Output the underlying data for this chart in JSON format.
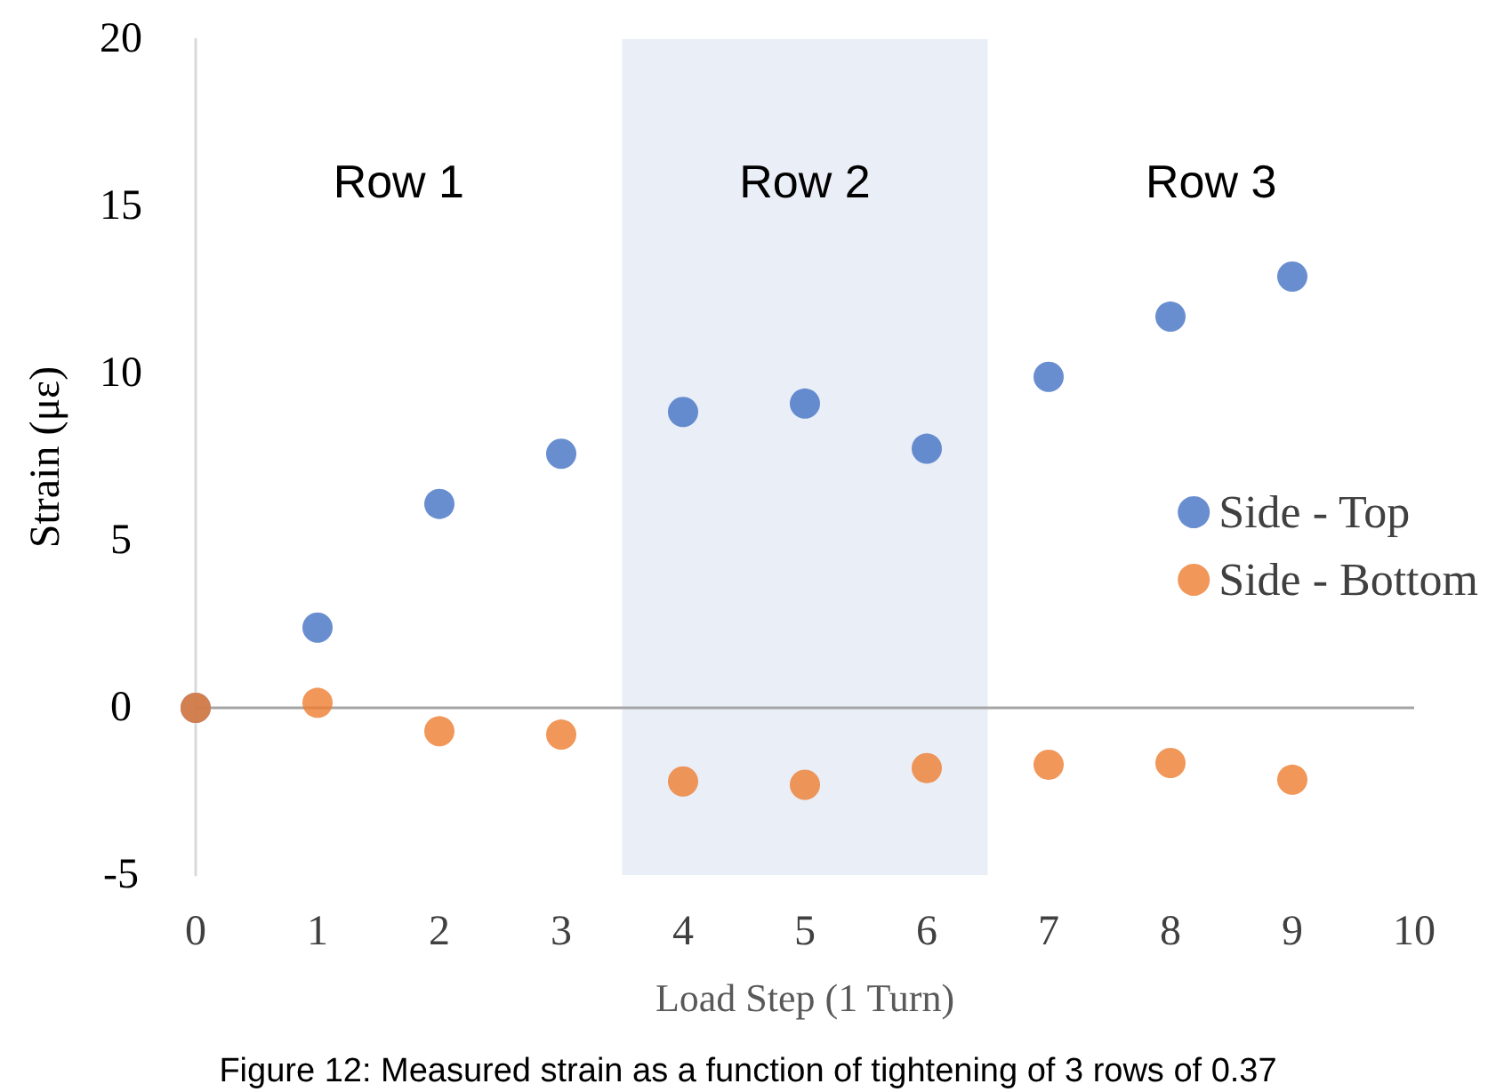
{
  "chart_data": {
    "type": "scatter",
    "xlabel": "Load Step (1 Turn)",
    "ylabel": "Strain (με)",
    "x": [
      0,
      1,
      2,
      3,
      4,
      5,
      6,
      7,
      8,
      9
    ],
    "series": [
      {
        "name": "Side - Top",
        "color": "#4472c4",
        "values": [
          0,
          2.4,
          6.1,
          7.6,
          8.85,
          9.1,
          7.75,
          9.9,
          11.7,
          12.9
        ]
      },
      {
        "name": "Side - Bottom",
        "color": "#ed7d31",
        "values": [
          0,
          0.15,
          -0.7,
          -0.8,
          -2.2,
          -2.3,
          -1.8,
          -1.7,
          -1.65,
          -2.15
        ]
      }
    ],
    "xlim": [
      0,
      10
    ],
    "xticks": [
      0,
      1,
      2,
      3,
      4,
      5,
      6,
      7,
      8,
      9,
      10
    ],
    "ylim": [
      -5,
      20
    ],
    "yticks": [
      -5,
      0,
      5,
      10,
      15,
      20
    ],
    "bands": [
      {
        "axis": "x",
        "from": 3.5,
        "to": 6.5,
        "color": "#e9eef7"
      }
    ],
    "ref_lines": [
      {
        "axis": "y",
        "value": 0,
        "color": "#a6a6a6"
      }
    ],
    "annotations": [
      "Row 1",
      "Row 2",
      "Row 3",
      "Figure 12: Measured strain as a function of tightening of 3 rows of 0.37"
    ],
    "grid": false,
    "legend": "right",
    "marker": "circle"
  }
}
